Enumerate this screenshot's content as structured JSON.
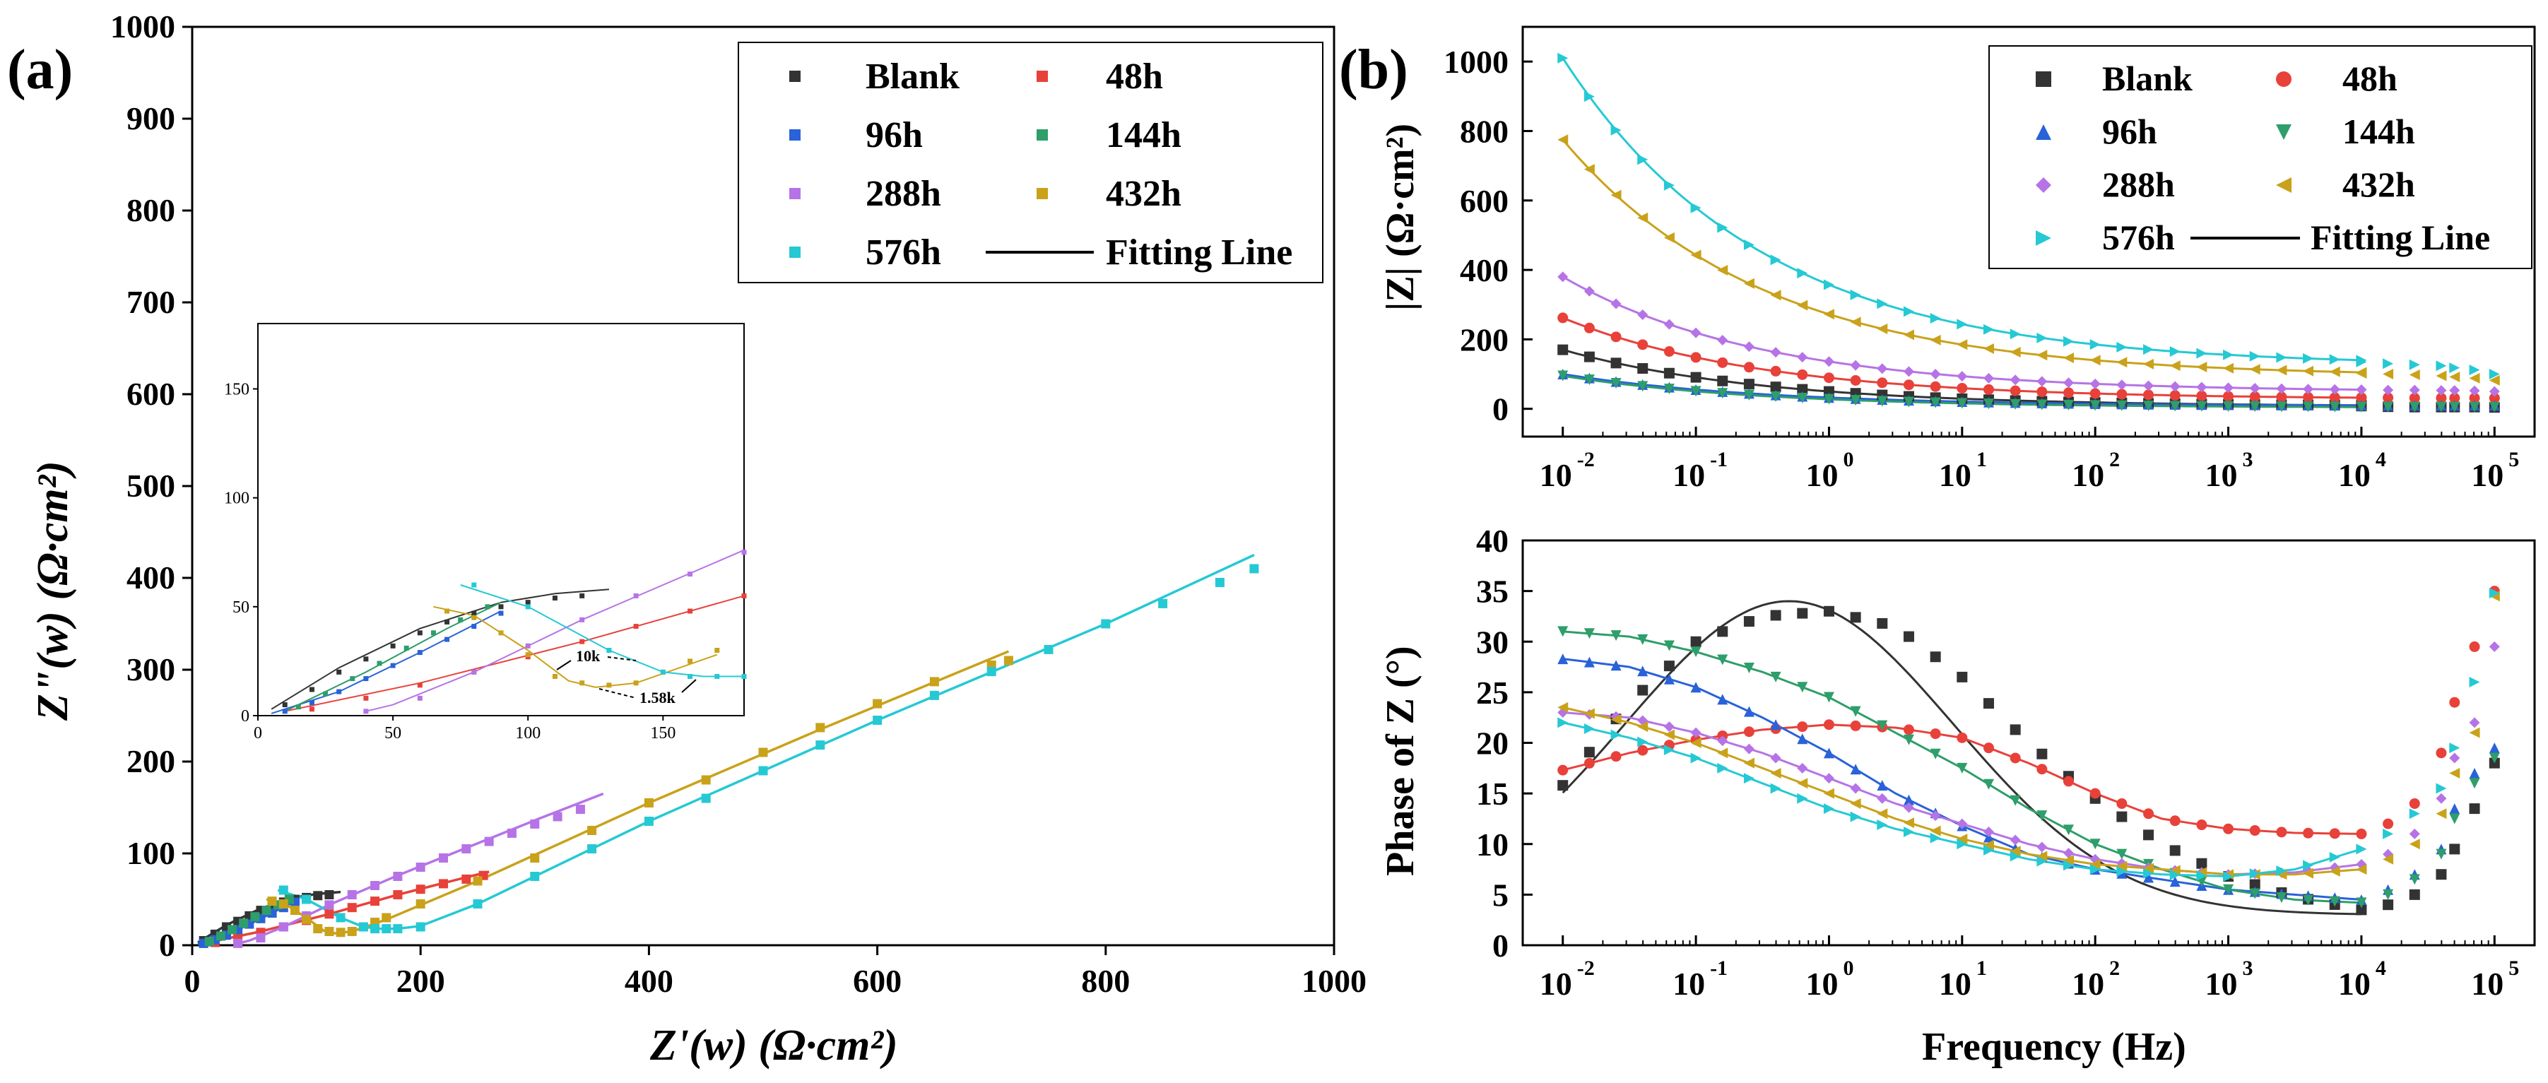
{
  "colors": {
    "Blank": "#333333",
    "48h": "#e8413a",
    "96h": "#2962d9",
    "144h": "#2e9e6a",
    "288h": "#b673e6",
    "432h": "#c9a21a",
    "576h": "#25c9d4",
    "Fitting Line": "#000000"
  },
  "chart_data": [
    {
      "id": "a",
      "panel_label": "(a)",
      "type": "scatter",
      "title": "",
      "xlabel": "Z'(w) (Ω·cm²)",
      "ylabel": "Z\"(w) (Ω·cm²)",
      "xlim": [
        0,
        1000
      ],
      "ylim": [
        0,
        1000
      ],
      "xticks": [
        "0",
        "200",
        "400",
        "600",
        "800",
        "1000"
      ],
      "yticks": [
        "0",
        "100",
        "200",
        "300",
        "400",
        "500",
        "600",
        "700",
        "800",
        "900",
        "1000"
      ],
      "legend": [
        "Blank",
        "48h",
        "96h",
        "144h",
        "288h",
        "432h",
        "576h",
        "Fitting Line"
      ],
      "legend_position": "top-right",
      "marker": "square",
      "series": [
        {
          "name": "Blank",
          "x": [
            10,
            20,
            30,
            40,
            50,
            60,
            70,
            80,
            90,
            100,
            110,
            120
          ],
          "y": [
            5,
            12,
            20,
            26,
            32,
            38,
            43,
            47,
            50,
            52,
            54,
            55
          ]
        },
        {
          "name": "48h",
          "x": [
            20,
            40,
            60,
            80,
            100,
            120,
            140,
            160,
            180,
            200,
            220,
            240,
            255
          ],
          "y": [
            3,
            8,
            14,
            20,
            27,
            34,
            41,
            48,
            55,
            61,
            67,
            72,
            76
          ]
        },
        {
          "name": "96h",
          "x": [
            10,
            20,
            30,
            40,
            50,
            60,
            70,
            80,
            90
          ],
          "y": [
            2,
            6,
            11,
            17,
            23,
            29,
            35,
            41,
            47
          ]
        },
        {
          "name": "144h",
          "x": [
            15,
            25,
            35,
            45,
            55,
            65,
            75,
            85
          ],
          "y": [
            4,
            10,
            17,
            24,
            31,
            38,
            44,
            50
          ]
        },
        {
          "name": "288h",
          "x": [
            40,
            60,
            80,
            100,
            120,
            140,
            160,
            180,
            200,
            220,
            240,
            260,
            280,
            300,
            320,
            340
          ],
          "y": [
            2,
            8,
            20,
            32,
            44,
            55,
            65,
            75,
            85,
            95,
            105,
            113,
            122,
            132,
            140,
            148
          ]
        },
        {
          "name": "432h",
          "x": [
            70,
            80,
            90,
            100,
            110,
            120,
            130,
            140,
            150,
            160,
            170,
            200,
            250,
            300,
            350,
            400,
            450,
            500,
            550,
            600,
            650,
            700,
            715
          ],
          "y": [
            48,
            45,
            38,
            28,
            18,
            15,
            14,
            15,
            20,
            25,
            30,
            45,
            70,
            95,
            125,
            155,
            180,
            210,
            237,
            263,
            287,
            305,
            310
          ]
        },
        {
          "name": "576h",
          "x": [
            80,
            100,
            130,
            150,
            160,
            170,
            180,
            200,
            250,
            300,
            350,
            400,
            450,
            500,
            550,
            600,
            650,
            700,
            750,
            800,
            850,
            900,
            930
          ],
          "y": [
            60,
            50,
            30,
            20,
            18,
            18,
            18,
            20,
            45,
            75,
            105,
            135,
            160,
            190,
            218,
            245,
            272,
            298,
            322,
            350,
            372,
            395,
            410
          ]
        }
      ],
      "fits": [
        {
          "name": "Blank",
          "x": [
            5,
            30,
            60,
            90,
            110,
            130
          ],
          "y": [
            3,
            22,
            40,
            52,
            56,
            58
          ]
        },
        {
          "name": "48h",
          "x": [
            10,
            60,
            120,
            180,
            240,
            260
          ],
          "y": [
            2,
            15,
            34,
            55,
            74,
            80
          ]
        },
        {
          "name": "96h",
          "x": [
            5,
            30,
            60,
            90
          ],
          "y": [
            1,
            11,
            29,
            48
          ]
        },
        {
          "name": "144h",
          "x": [
            10,
            40,
            70,
            90
          ],
          "y": [
            2,
            20,
            40,
            52
          ]
        },
        {
          "name": "288h",
          "x": [
            40,
            50,
            60,
            80,
            120,
            180,
            240,
            300,
            360
          ],
          "y": [
            2,
            5,
            10,
            20,
            44,
            76,
            106,
            136,
            165
          ]
        },
        {
          "name": "432h",
          "x": [
            65,
            80,
            100,
            115,
            125,
            140,
            170,
            250,
            400,
            550,
            715
          ],
          "y": [
            50,
            46,
            30,
            16,
            13,
            15,
            28,
            70,
            155,
            235,
            320
          ]
        },
        {
          "name": "576h",
          "x": [
            75,
            100,
            130,
            150,
            165,
            180,
            200,
            250,
            400,
            600,
            800,
            930
          ],
          "y": [
            60,
            50,
            30,
            20,
            18,
            18,
            21,
            45,
            135,
            245,
            350,
            425
          ]
        }
      ],
      "inset": {
        "xlim": [
          0,
          180
        ],
        "ylim": [
          0,
          180
        ],
        "xticks": [
          "0",
          "50",
          "100",
          "150"
        ],
        "yticks": [
          "0",
          "50",
          "100",
          "150"
        ],
        "annotations": [
          "10k",
          "1.58k"
        ]
      }
    },
    {
      "id": "b_top",
      "panel_label": "(b)",
      "type": "scatter",
      "title": "",
      "xlabel": "",
      "ylabel": "|Z| (Ω·cm²)",
      "xscale": "log",
      "xlim": [
        0.005,
        200000
      ],
      "ylim": [
        -80,
        1100
      ],
      "xticks": [
        "10^-2",
        "10^-1",
        "10^0",
        "10^1",
        "10^2",
        "10^3",
        "10^4",
        "10^5"
      ],
      "yticks": [
        "0",
        "200",
        "400",
        "600",
        "800",
        "1000"
      ],
      "legend": [
        "Blank",
        "48h",
        "96h",
        "144h",
        "288h",
        "432h",
        "576h",
        "Fitting Line"
      ],
      "legend_position": "top-right",
      "series": [
        {
          "name": "Blank",
          "marker": "square",
          "start": 170,
          "end": 10,
          "tail": [
            8,
            6,
            5,
            5,
            5,
            5,
            4
          ]
        },
        {
          "name": "48h",
          "marker": "circle",
          "start": 262,
          "end": 32,
          "tail": [
            32,
            32,
            31,
            31,
            31,
            31,
            31
          ]
        },
        {
          "name": "96h",
          "marker": "triangle-up",
          "start": 100,
          "end": 10,
          "tail": [
            10,
            10,
            10,
            10,
            10,
            10,
            10
          ]
        },
        {
          "name": "144h",
          "marker": "triangle-down",
          "start": 95,
          "end": 5,
          "tail": [
            5,
            5,
            5,
            5,
            5,
            5,
            5
          ]
        },
        {
          "name": "288h",
          "marker": "diamond",
          "start": 380,
          "end": 55,
          "tail": [
            55,
            54,
            54,
            53,
            53,
            52,
            50
          ]
        },
        {
          "name": "432h",
          "marker": "triangle-left",
          "start": 775,
          "end": 105,
          "tail": [
            102,
            100,
            98,
            95,
            92,
            88,
            82
          ]
        },
        {
          "name": "576h",
          "marker": "triangle-right",
          "start": 1010,
          "end": 140,
          "tail": [
            135,
            130,
            127,
            124,
            118,
            112,
            100
          ]
        }
      ]
    },
    {
      "id": "b_bottom",
      "type": "scatter",
      "title": "",
      "xlabel": "Frequency (Hz)",
      "ylabel": "Phase of Z (°)",
      "xscale": "log",
      "xlim": [
        0.005,
        200000
      ],
      "ylim": [
        0,
        40
      ],
      "xticks": [
        "10^-2",
        "10^-1",
        "10^0",
        "10^1",
        "10^2",
        "10^3",
        "10^4",
        "10^5"
      ],
      "yticks": [
        "0",
        "5",
        "10",
        "15",
        "20",
        "25",
        "30",
        "35",
        "40"
      ],
      "series": [
        {
          "name": "Blank",
          "marker": "square",
          "log_f": [
            -2,
            -1.5,
            -1,
            -0.5,
            0,
            0.5,
            1,
            1.5,
            2,
            2.5,
            3,
            3.5,
            4
          ],
          "values": [
            15.8,
            24,
            30,
            32.5,
            33,
            31.5,
            26.5,
            20,
            14.5,
            10,
            6.8,
            4.8,
            3.5
          ],
          "tail": [
            4.0,
            5.0,
            7.0,
            9.5,
            13.5,
            18.0
          ]
        },
        {
          "name": "48h",
          "marker": "circle",
          "log_f": [
            -2,
            -1.5,
            -1,
            -0.5,
            0,
            0.5,
            1,
            1.5,
            2,
            2.5,
            3,
            3.5,
            4
          ],
          "values": [
            17.3,
            19,
            20.3,
            21.3,
            21.8,
            21.5,
            20.5,
            18,
            15,
            12.5,
            11.5,
            11.1,
            11
          ],
          "tail": [
            12,
            14,
            19,
            24,
            29.5,
            35
          ]
        },
        {
          "name": "96h",
          "marker": "triangle-up",
          "log_f": [
            -2,
            -1.5,
            -1,
            -0.5,
            0,
            0.5,
            1,
            1.5,
            2,
            2.5,
            3,
            3.5,
            4
          ],
          "values": [
            28.3,
            27.5,
            25.5,
            22.5,
            19,
            15,
            11.8,
            9,
            7.5,
            6.5,
            5.5,
            5,
            4.5
          ],
          "tail": [
            5.5,
            7,
            9.5,
            13.5,
            17,
            19.5
          ]
        },
        {
          "name": "144h",
          "marker": "triangle-down",
          "log_f": [
            -2,
            -1.5,
            -1,
            -0.5,
            0,
            0.5,
            1,
            1.5,
            2,
            2.5,
            3,
            3.5,
            4
          ],
          "values": [
            31,
            30.5,
            29,
            27,
            24.5,
            21,
            17.5,
            13.5,
            10,
            7.5,
            5.5,
            4.5,
            4.2
          ],
          "tail": [
            5,
            6.5,
            9,
            12.5,
            16,
            18.5
          ]
        },
        {
          "name": "288h",
          "marker": "diamond",
          "log_f": [
            -2,
            -1.5,
            -1,
            -0.5,
            0,
            0.5,
            1,
            1.5,
            2,
            2.5,
            3,
            3.5,
            4
          ],
          "values": [
            23,
            22.5,
            21,
            19,
            16.5,
            14,
            12,
            10,
            8.5,
            7.5,
            7,
            7.2,
            8
          ],
          "tail": [
            9,
            11,
            14.5,
            18.5,
            22,
            29.5
          ]
        },
        {
          "name": "432h",
          "marker": "triangle-left",
          "log_f": [
            -2,
            -1.5,
            -1,
            -0.5,
            0,
            0.5,
            1,
            1.5,
            2,
            2.5,
            3,
            3.5,
            4
          ],
          "values": [
            23.5,
            22,
            20,
            17.5,
            15,
            12.5,
            10.5,
            9,
            8,
            7.5,
            7,
            7,
            7.5
          ],
          "tail": [
            8.5,
            10,
            13,
            17,
            21,
            34.5
          ]
        },
        {
          "name": "576h",
          "marker": "triangle-right",
          "log_f": [
            -2,
            -1.5,
            -1,
            -0.5,
            0,
            0.5,
            1,
            1.5,
            2,
            2.5,
            3,
            3.5,
            4
          ],
          "values": [
            22,
            20.5,
            18.5,
            16,
            13.5,
            11.5,
            10,
            8.5,
            7.5,
            7,
            6.8,
            7.5,
            9.5
          ],
          "tail": [
            11,
            13,
            15.5,
            19.5,
            26,
            34.8
          ]
        }
      ]
    }
  ]
}
